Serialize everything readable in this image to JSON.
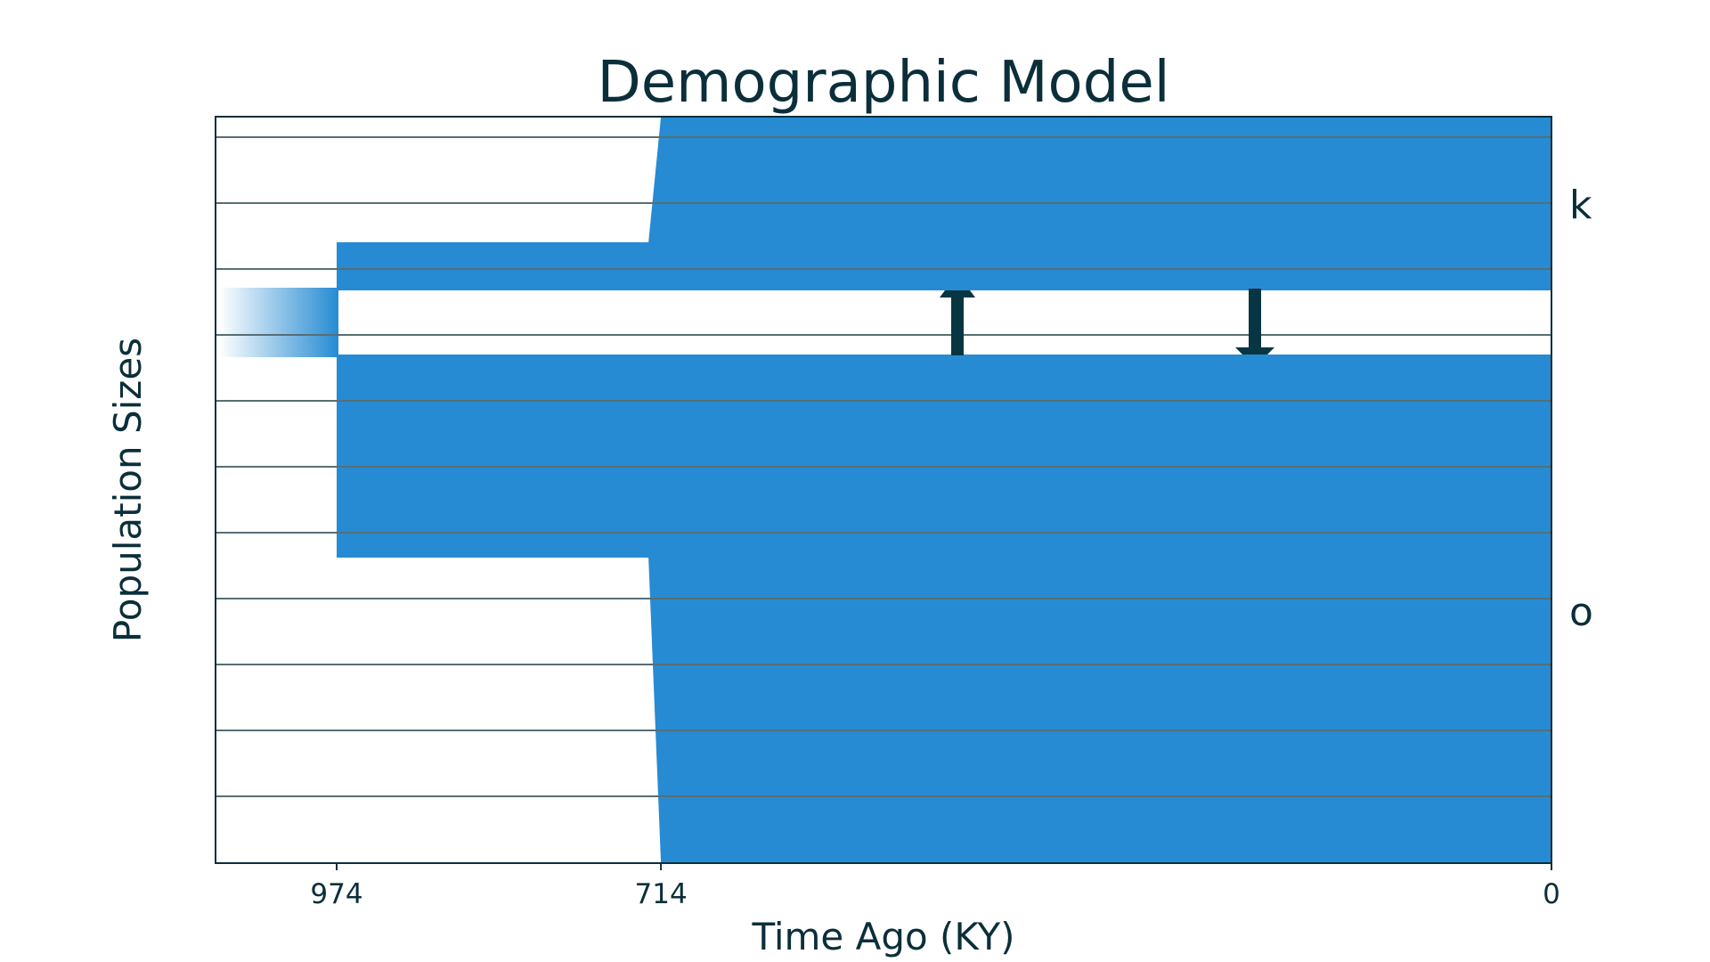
{
  "chart_data": {
    "type": "area",
    "title": "Demographic Model",
    "xlabel": "Time Ago (KY)",
    "ylabel": "Population Sizes",
    "x_ticks": [
      974,
      714,
      0
    ],
    "x_tick_labels": [
      "974",
      "714",
      "0"
    ],
    "grid": true,
    "populations": [
      {
        "name": "k"
      },
      {
        "name": "o"
      }
    ],
    "split_times": [
      974,
      714
    ],
    "migration": [
      {
        "from": "o",
        "to": "k"
      },
      {
        "from": "k",
        "to": "o"
      }
    ],
    "colors": {
      "population": "#268bd2",
      "arrow": "#073642",
      "grid": "#586e75",
      "text": "#0b2f3a",
      "frame": "#0b2f3a"
    }
  }
}
